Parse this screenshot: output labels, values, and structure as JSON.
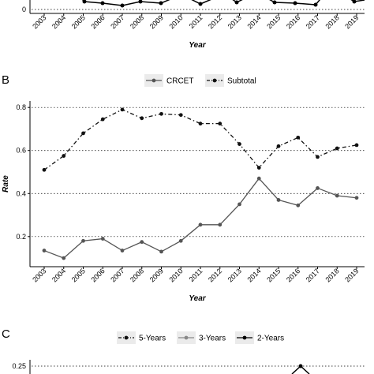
{
  "panels": {
    "a": {
      "xlabel": "Year"
    },
    "b": {
      "letter": "B",
      "xlabel": "Year",
      "ylabel": "Rate"
    },
    "c": {
      "letter": "C"
    }
  },
  "chart_data": [
    {
      "type": "line",
      "panel": "A",
      "categories": [
        "2003",
        "2004",
        "2005",
        "2006",
        "2007",
        "2008",
        "2009",
        "2010",
        "2011",
        "2012",
        "2013",
        "2014",
        "2015",
        "2016",
        "2017",
        "2018",
        "2019"
      ],
      "yticks": [
        "0"
      ],
      "xlabel": "Year",
      "note": "partially visible at top of image"
    },
    {
      "type": "line",
      "panel": "B",
      "categories": [
        "2003",
        "2004",
        "2005",
        "2006",
        "2007",
        "2008",
        "2009",
        "2010",
        "2011",
        "2012",
        "2013",
        "2014",
        "2015",
        "2016",
        "2017",
        "2018",
        "2019"
      ],
      "series": [
        {
          "name": "CRCET",
          "line": "solid",
          "color": "#555555",
          "values": [
            0.135,
            0.1,
            0.18,
            0.19,
            0.135,
            0.175,
            0.13,
            0.18,
            0.255,
            0.255,
            0.35,
            0.47,
            0.37,
            0.345,
            0.425,
            0.39,
            0.38
          ]
        },
        {
          "name": "Subtotal",
          "line": "dotdash",
          "color": "#111111",
          "values": [
            0.51,
            0.575,
            0.68,
            0.745,
            0.79,
            0.75,
            0.77,
            0.765,
            0.725,
            0.725,
            0.63,
            0.52,
            0.62,
            0.66,
            0.57,
            0.61,
            0.625
          ]
        }
      ],
      "yticks": [
        "0.2",
        "0.4",
        "0.6",
        "0.8"
      ],
      "ylim": [
        0.06,
        0.83
      ],
      "xlabel": "Year",
      "ylabel": "Rate",
      "legend": "top",
      "grid": "horizontal-dotted"
    },
    {
      "type": "line",
      "panel": "C",
      "series": [
        {
          "name": "5-Years",
          "line": "dotdash",
          "color": "#111111"
        },
        {
          "name": "3-Years",
          "line": "solid",
          "color": "#888888"
        },
        {
          "name": "2-Years",
          "line": "solid",
          "color": "#000000"
        }
      ],
      "yticks": [
        "0.25"
      ],
      "legend": "top",
      "note": "partially visible at bottom of image"
    }
  ]
}
